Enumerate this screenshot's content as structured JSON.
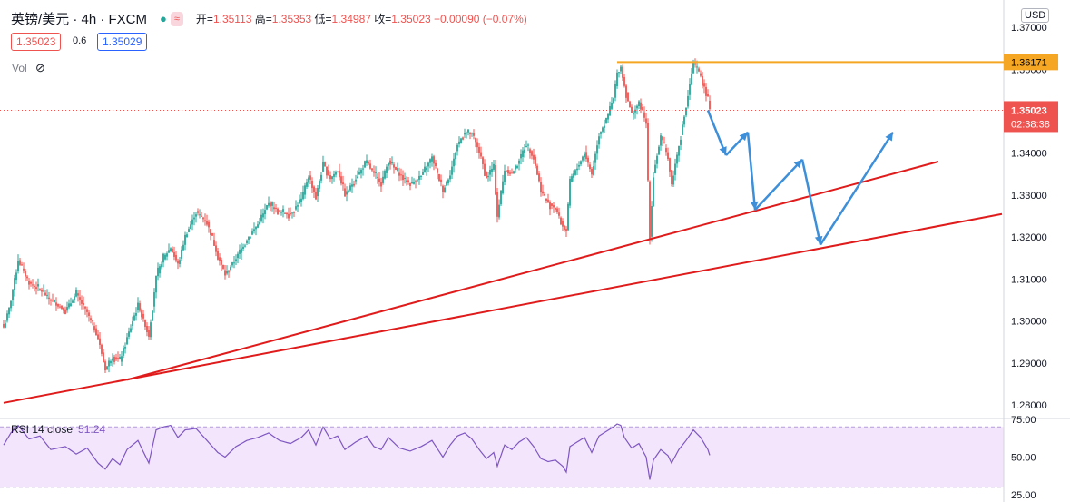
{
  "header": {
    "symbol": "英镑/美元 · 4h · FXCM",
    "open_label": "开=",
    "open": "1.35113",
    "high_label": "高=",
    "high": "1.35353",
    "low_label": "低=",
    "low": "1.34987",
    "close_label": "收=",
    "close": "1.35023",
    "change": "−0.00090 (−0.07%)"
  },
  "trade": {
    "sell": "1.35023",
    "spread": "0.6",
    "buy": "1.35029"
  },
  "volume_label": "Vol",
  "currency": "USD",
  "colors": {
    "up": "#26a69a",
    "down": "#ef5350",
    "trend": "#e01b1b",
    "arrow": "#3d8fd9",
    "resistance": "#f5a623",
    "rsi": "#7e57c2",
    "rsi_band": "#f3e5fb"
  },
  "chart_data": [
    {
      "type": "candlestick",
      "title": "",
      "ylim": [
        1.277,
        1.3765
      ],
      "y_ticks": [
        "1.28000",
        "1.29000",
        "1.30000",
        "1.31000",
        "1.32000",
        "1.33000",
        "1.34000",
        "1.35000",
        "1.36000",
        "1.37000"
      ],
      "resistance": {
        "value": 1.36171,
        "label": "1.36171"
      },
      "last_price": {
        "value": 1.35023,
        "label": "1.35023",
        "countdown": "02:38:38"
      },
      "candle_anchors": [
        [
          0,
          1.2985
        ],
        [
          3,
          1.303
        ],
        [
          8,
          1.3145
        ],
        [
          14,
          1.309
        ],
        [
          20,
          1.3075
        ],
        [
          26,
          1.305
        ],
        [
          34,
          1.3025
        ],
        [
          40,
          1.3065
        ],
        [
          46,
          1.302
        ],
        [
          52,
          1.296
        ],
        [
          56,
          1.2885
        ],
        [
          60,
          1.2915
        ],
        [
          64,
          1.2905
        ],
        [
          68,
          1.296
        ],
        [
          74,
          1.304
        ],
        [
          80,
          1.2965
        ],
        [
          84,
          1.3105
        ],
        [
          88,
          1.315
        ],
        [
          92,
          1.3175
        ],
        [
          96,
          1.3135
        ],
        [
          100,
          1.32
        ],
        [
          106,
          1.326
        ],
        [
          112,
          1.3235
        ],
        [
          118,
          1.3155
        ],
        [
          122,
          1.311
        ],
        [
          128,
          1.315
        ],
        [
          134,
          1.3195
        ],
        [
          140,
          1.323
        ],
        [
          146,
          1.328
        ],
        [
          152,
          1.326
        ],
        [
          158,
          1.3255
        ],
        [
          164,
          1.329
        ],
        [
          168,
          1.3345
        ],
        [
          172,
          1.3295
        ],
        [
          176,
          1.3375
        ],
        [
          180,
          1.334
        ],
        [
          184,
          1.336
        ],
        [
          188,
          1.33
        ],
        [
          194,
          1.334
        ],
        [
          200,
          1.338
        ],
        [
          204,
          1.335
        ],
        [
          208,
          1.333
        ],
        [
          212,
          1.338
        ],
        [
          218,
          1.335
        ],
        [
          224,
          1.3325
        ],
        [
          230,
          1.3345
        ],
        [
          236,
          1.339
        ],
        [
          242,
          1.331
        ],
        [
          246,
          1.335
        ],
        [
          250,
          1.342
        ],
        [
          254,
          1.345
        ],
        [
          258,
          1.3445
        ],
        [
          262,
          1.3405
        ],
        [
          266,
          1.334
        ],
        [
          270,
          1.337
        ],
        [
          272,
          1.325
        ],
        [
          276,
          1.336
        ],
        [
          280,
          1.335
        ],
        [
          284,
          1.3385
        ],
        [
          288,
          1.342
        ],
        [
          292,
          1.339
        ],
        [
          296,
          1.331
        ],
        [
          300,
          1.328
        ],
        [
          304,
          1.327
        ],
        [
          308,
          1.3225
        ],
        [
          310,
          1.3215
        ],
        [
          312,
          1.3335
        ],
        [
          316,
          1.3365
        ],
        [
          320,
          1.34
        ],
        [
          324,
          1.335
        ],
        [
          328,
          1.3445
        ],
        [
          332,
          1.348
        ],
        [
          336,
          1.353
        ],
        [
          338,
          1.359
        ],
        [
          340,
          1.3605
        ],
        [
          342,
          1.356
        ],
        [
          346,
          1.349
        ],
        [
          350,
          1.352
        ],
        [
          354,
          1.347
        ],
        [
          356,
          1.32
        ],
        [
          358,
          1.335
        ],
        [
          362,
          1.344
        ],
        [
          366,
          1.339
        ],
        [
          368,
          1.3325
        ],
        [
          372,
          1.342
        ],
        [
          376,
          1.351
        ],
        [
          380,
          1.3615
        ],
        [
          384,
          1.3585
        ],
        [
          388,
          1.3525
        ],
        [
          389,
          1.3502
        ]
      ],
      "trendlines": [
        {
          "from": [
            0,
            1.2805
          ],
          "to": [
            550,
            1.3255
          ]
        },
        {
          "from": [
            68,
            1.286
          ],
          "to": [
            515,
            1.338
          ]
        }
      ],
      "projected_path": [
        [
          388,
          1.3502
        ],
        [
          398,
          1.3395
        ],
        [
          410,
          1.345
        ],
        [
          414,
          1.3265
        ],
        [
          440,
          1.3385
        ],
        [
          450,
          1.3182
        ],
        [
          490,
          1.345
        ]
      ]
    },
    {
      "type": "line",
      "title": "RSI 14 close",
      "last_value": "51.24",
      "ylim": [
        25,
        75
      ],
      "y_ticks": [
        "75.00",
        "50.00",
        "25.00"
      ],
      "band": [
        30,
        70
      ],
      "anchors": [
        [
          0,
          58
        ],
        [
          4,
          66
        ],
        [
          8,
          71
        ],
        [
          14,
          62
        ],
        [
          20,
          64
        ],
        [
          26,
          55
        ],
        [
          34,
          57
        ],
        [
          40,
          52
        ],
        [
          46,
          56
        ],
        [
          52,
          46
        ],
        [
          56,
          42
        ],
        [
          60,
          49
        ],
        [
          64,
          45
        ],
        [
          68,
          55
        ],
        [
          74,
          61
        ],
        [
          80,
          46
        ],
        [
          84,
          68
        ],
        [
          88,
          70
        ],
        [
          92,
          71
        ],
        [
          96,
          63
        ],
        [
          100,
          68
        ],
        [
          106,
          69
        ],
        [
          112,
          61
        ],
        [
          118,
          53
        ],
        [
          122,
          50
        ],
        [
          128,
          57
        ],
        [
          134,
          61
        ],
        [
          140,
          63
        ],
        [
          146,
          66
        ],
        [
          152,
          61
        ],
        [
          158,
          59
        ],
        [
          164,
          63
        ],
        [
          168,
          68
        ],
        [
          172,
          58
        ],
        [
          176,
          70
        ],
        [
          180,
          62
        ],
        [
          184,
          64
        ],
        [
          188,
          55
        ],
        [
          194,
          60
        ],
        [
          200,
          64
        ],
        [
          204,
          57
        ],
        [
          208,
          55
        ],
        [
          212,
          63
        ],
        [
          218,
          56
        ],
        [
          224,
          54
        ],
        [
          230,
          57
        ],
        [
          236,
          61
        ],
        [
          242,
          50
        ],
        [
          246,
          58
        ],
        [
          250,
          64
        ],
        [
          254,
          66
        ],
        [
          258,
          62
        ],
        [
          262,
          55
        ],
        [
          266,
          49
        ],
        [
          270,
          53
        ],
        [
          272,
          44
        ],
        [
          276,
          58
        ],
        [
          280,
          55
        ],
        [
          284,
          60
        ],
        [
          288,
          63
        ],
        [
          292,
          57
        ],
        [
          296,
          49
        ],
        [
          300,
          47
        ],
        [
          304,
          48
        ],
        [
          308,
          44
        ],
        [
          310,
          40
        ],
        [
          312,
          57
        ],
        [
          316,
          60
        ],
        [
          320,
          63
        ],
        [
          324,
          53
        ],
        [
          328,
          64
        ],
        [
          332,
          67
        ],
        [
          336,
          70
        ],
        [
          338,
          72
        ],
        [
          340,
          71
        ],
        [
          342,
          63
        ],
        [
          346,
          56
        ],
        [
          350,
          59
        ],
        [
          354,
          50
        ],
        [
          356,
          35
        ],
        [
          358,
          48
        ],
        [
          362,
          55
        ],
        [
          366,
          51
        ],
        [
          368,
          46
        ],
        [
          372,
          55
        ],
        [
          376,
          61
        ],
        [
          380,
          68
        ],
        [
          384,
          63
        ],
        [
          388,
          55
        ],
        [
          389,
          51.24
        ]
      ]
    }
  ]
}
